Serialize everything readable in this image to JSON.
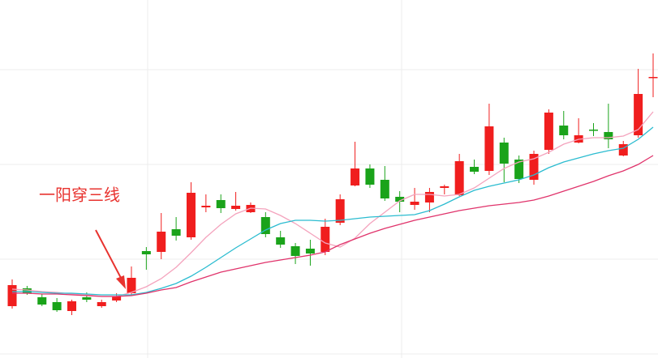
{
  "chart_data": {
    "type": "candlestick",
    "annotation": "一阳穿三线",
    "up_color": "#f01e1e",
    "down_color": "#1aa31a",
    "ylim": [
      0,
      442
    ],
    "yticks": [
      5,
      122,
      239,
      356
    ],
    "grid": true,
    "open": [
      64,
      86,
      75,
      69,
      58,
      75,
      64,
      71,
      80,
      132,
      131,
      159,
      149,
      186,
      195,
      184,
      180,
      174,
      149,
      138,
      135,
      131,
      167,
      213,
      234,
      220,
      199,
      189,
      192,
      210,
      201,
      236,
      231,
      266,
      245,
      220,
      257,
      287,
      266,
      282,
      279,
      250,
      275,
      347
    ],
    "close": [
      90,
      80,
      66,
      59,
      70,
      72,
      69,
      76,
      99,
      128,
      156,
      151,
      204,
      188,
      185,
      188,
      189,
      153,
      140,
      126,
      129,
      162,
      196,
      234,
      214,
      197,
      193,
      193,
      205,
      212,
      243,
      230,
      286,
      240,
      221,
      252,
      303,
      275,
      275,
      281,
      270,
      264,
      326,
      347
    ],
    "high": [
      97,
      89,
      79,
      74,
      72,
      81,
      72,
      80,
      113,
      137,
      179,
      174,
      217,
      202,
      202,
      205,
      192,
      180,
      157,
      142,
      146,
      172,
      202,
      267,
      239,
      237,
      206,
      210,
      210,
      214,
      252,
      245,
      314,
      272,
      250,
      256,
      307,
      305,
      296,
      290,
      314,
      268,
      357,
      376
    ],
    "low": [
      61,
      78,
      64,
      57,
      53,
      69,
      62,
      69,
      77,
      109,
      122,
      145,
      146,
      180,
      179,
      182,
      179,
      149,
      136,
      116,
      114,
      127,
      164,
      212,
      210,
      194,
      180,
      183,
      180,
      202,
      200,
      227,
      226,
      217,
      216,
      214,
      252,
      270,
      265,
      274,
      259,
      249,
      272,
      322
    ],
    "series": [
      {
        "color": "#f4a3bd",
        "values": [
          85,
          84,
          82,
          81,
          79,
          78,
          76,
          76,
          81,
          88,
          98,
          112,
          130,
          149,
          165,
          178,
          185,
          184,
          176,
          166,
          154,
          142,
          137,
          148,
          166,
          180,
          194,
          202,
          202,
          200,
          202,
          210,
          222,
          234,
          242,
          246,
          254,
          264,
          270,
          272,
          272,
          274,
          282,
          304
        ]
      },
      {
        "color": "#2bbcd0",
        "values": [
          82,
          82,
          81,
          80,
          80,
          79,
          78,
          78,
          78,
          81,
          86,
          92,
          101,
          112,
          124,
          136,
          147,
          158,
          166,
          170,
          170,
          169,
          170,
          172,
          174,
          175,
          176,
          177,
          182,
          190,
          199,
          207,
          212,
          216,
          220,
          226,
          235,
          242,
          247,
          252,
          256,
          259,
          270,
          285
        ]
      },
      {
        "color": "#e0336b",
        "values": [
          80,
          80,
          79,
          79,
          78,
          77,
          76,
          76,
          77,
          80,
          84,
          87,
          94,
          100,
          106,
          110,
          114,
          118,
          121,
          124,
          127,
          131,
          140,
          147,
          154,
          160,
          165,
          170,
          174,
          178,
          182,
          185,
          188,
          190,
          192,
          195,
          200,
          206,
          212,
          218,
          225,
          231,
          239,
          250
        ]
      }
    ]
  }
}
